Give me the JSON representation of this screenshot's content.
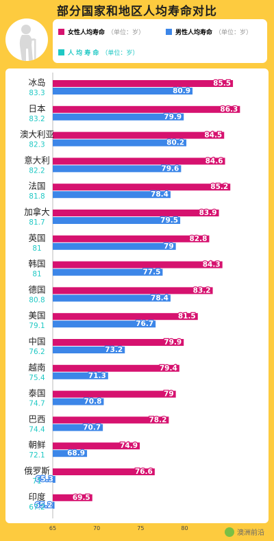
{
  "title": "部分国家和地区人均寿命对比",
  "legend": {
    "female": {
      "label": "女性人均寿命",
      "unit": "（单位：岁）"
    },
    "male": {
      "label": "男性人均寿命",
      "unit": "（单位：岁）"
    },
    "average": {
      "label": "人 均 寿 命",
      "unit": "（单位：岁）"
    }
  },
  "colors": {
    "female": "#D6126F",
    "male": "#3C86E8",
    "average": "#1FC8C4",
    "background": "#FDCB3F"
  },
  "icons": {
    "avatar": "elderly-person-with-cane-icon",
    "watermark": "wechat-icon"
  },
  "watermark": "澳洲前沿",
  "chart_data": {
    "type": "bar",
    "title": "部分国家和地区人均寿命对比",
    "categories": [
      "冰岛",
      "日本",
      "澳大利亚",
      "意大利",
      "法国",
      "加拿大",
      "英国",
      "韩国",
      "德国",
      "美国",
      "中国",
      "越南",
      "泰国",
      "巴西",
      "朝鲜",
      "俄罗斯",
      "印度"
    ],
    "average": [
      "83.3",
      "83.2",
      "82.3",
      "82.2",
      "81.8",
      "81.7",
      "81",
      "81",
      "80.8",
      "79.1",
      "76.2",
      "75.4",
      "74.7",
      "74.4",
      "72.1",
      "71",
      "67.2"
    ],
    "series": [
      {
        "name": "女性人均寿命",
        "values": [
          85.5,
          86.3,
          84.5,
          84.6,
          85.2,
          83.9,
          82.8,
          84.3,
          83.2,
          81.5,
          79.9,
          79.4,
          79,
          78.2,
          74.9,
          76.6,
          69.5
        ]
      },
      {
        "name": "男性人均寿命",
        "values": [
          80.9,
          79.9,
          80.2,
          79.6,
          78.4,
          79.5,
          79,
          77.5,
          78.4,
          76.7,
          73.2,
          71.3,
          70.8,
          70.7,
          68.9,
          65.3,
          65.2
        ]
      }
    ],
    "xlim": [
      65,
      89
    ],
    "x_ticks": [
      65,
      70,
      75,
      80
    ],
    "legend_position": "top",
    "orientation": "horizontal"
  }
}
